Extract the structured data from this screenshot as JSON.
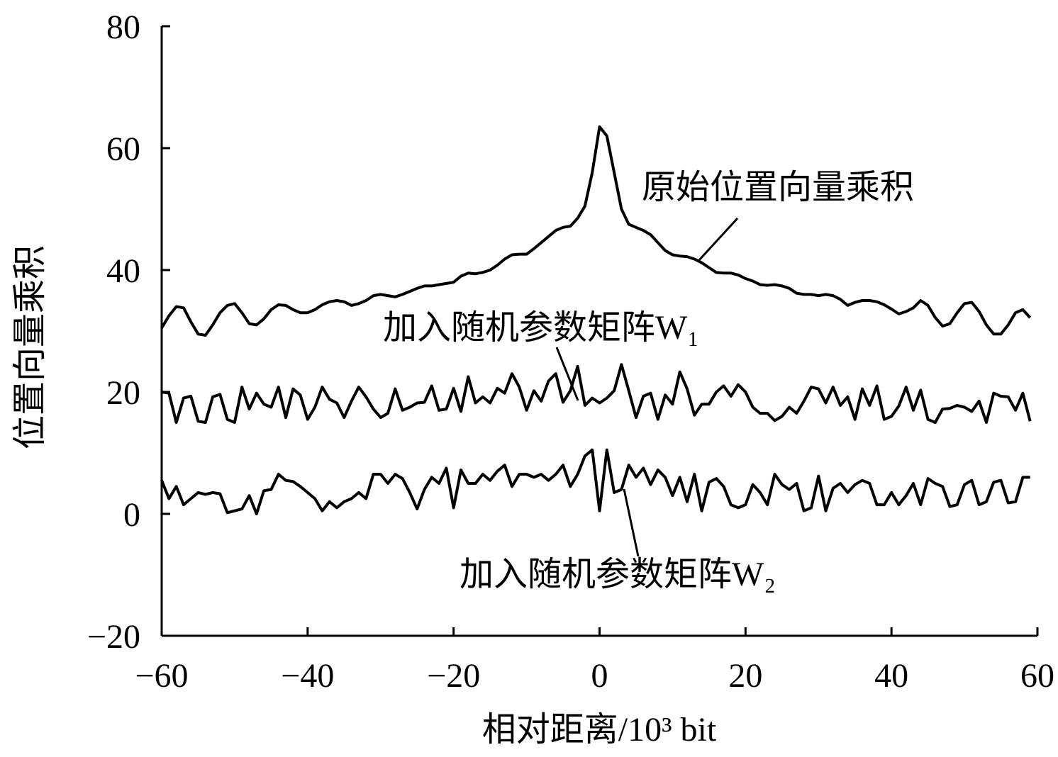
{
  "chart_data": {
    "type": "line",
    "xlabel": "相对距离/10³ bit",
    "ylabel": "位置向量乘积",
    "xlim": [
      -60,
      60
    ],
    "ylim": [
      -20,
      80
    ],
    "xticks": [
      {
        "value": -60,
        "label": "−60"
      },
      {
        "value": -40,
        "label": "−40"
      },
      {
        "value": -20,
        "label": "−20"
      },
      0,
      20,
      40,
      60
    ],
    "yticks": [
      {
        "value": -20,
        "label": "−20"
      },
      0,
      20,
      40,
      60,
      80
    ],
    "grid": false,
    "x": [
      -60,
      -59,
      -58,
      -57,
      -56,
      -55,
      -54,
      -53,
      -52,
      -51,
      -50,
      -49,
      -48,
      -47,
      -46,
      -45,
      -44,
      -43,
      -42,
      -41,
      -40,
      -39,
      -38,
      -37,
      -36,
      -35,
      -34,
      -33,
      -32,
      -31,
      -30,
      -29,
      -28,
      -27,
      -26,
      -25,
      -24,
      -23,
      -22,
      -21,
      -20,
      -19,
      -18,
      -17,
      -16,
      -15,
      -14,
      -13,
      -12,
      -11,
      -10,
      -9,
      -8,
      -7,
      -6,
      -5,
      -4,
      -3,
      -2,
      -1,
      0,
      1,
      2,
      3,
      4,
      5,
      6,
      7,
      8,
      9,
      10,
      11,
      12,
      13,
      14,
      15,
      16,
      17,
      18,
      19,
      20,
      21,
      22,
      23,
      24,
      25,
      26,
      27,
      28,
      29,
      30,
      31,
      32,
      33,
      34,
      35,
      36,
      37,
      38,
      39,
      40,
      41,
      42,
      43,
      44,
      45,
      46,
      47,
      48,
      49,
      50,
      51,
      52,
      53,
      54,
      55,
      56,
      57,
      58,
      59
    ],
    "series": [
      {
        "name": "原始位置向量乘积",
        "color": "#000000",
        "values": [
          30.5,
          32.5,
          34,
          33.8,
          31.5,
          29.5,
          29.3,
          31,
          33,
          34.2,
          34.5,
          33,
          31.2,
          31,
          32,
          33.5,
          34.3,
          34.2,
          33.5,
          33,
          33,
          33.5,
          34.3,
          34.8,
          35,
          34.8,
          34.2,
          34.5,
          35,
          35.8,
          36,
          35.8,
          35.6,
          36,
          36.5,
          37,
          37.4,
          37.4,
          37.6,
          37.8,
          38,
          39,
          39.5,
          39.4,
          39.6,
          40,
          40.8,
          41.8,
          42.5,
          42.6,
          42.6,
          43.5,
          44.5,
          45.5,
          46.5,
          47,
          47.2,
          48.5,
          50.5,
          56,
          63.5,
          62,
          56,
          50,
          47.5,
          47,
          46.5,
          45.8,
          44.5,
          43.2,
          42.5,
          42.3,
          42.2,
          41.8,
          41.2,
          40.4,
          39.6,
          39.5,
          39.5,
          39.2,
          38.6,
          38.2,
          37.6,
          37.5,
          37.6,
          37.4,
          37,
          36.2,
          36,
          36,
          35.8,
          36,
          35.8,
          35.2,
          34.2,
          34.7,
          35,
          35,
          34.8,
          34.3,
          33.6,
          32.8,
          33.2,
          33.8,
          35,
          34.2,
          32.2,
          30.8,
          31.2,
          33,
          34.5,
          34.7,
          33.2,
          31,
          29.5,
          29.5,
          31,
          33,
          33.5,
          32.2
        ]
      },
      {
        "name": "加入随机参数矩阵W₁",
        "color": "#000000",
        "values": [
          20,
          19.8,
          15,
          19,
          19.3,
          15.2,
          15,
          19.2,
          19.6,
          15.5,
          15,
          20.8,
          17.2,
          19.8,
          18,
          17.5,
          20.8,
          15.8,
          20.5,
          19.5,
          15.5,
          17.5,
          20.8,
          18.8,
          18.2,
          15.8,
          18.5,
          20.8,
          19.2,
          17.2,
          15.8,
          16.5,
          20.5,
          17,
          17.5,
          18.2,
          18.3,
          21,
          17,
          17.2,
          20.6,
          16.8,
          22.5,
          18.2,
          19.2,
          18.2,
          20.6,
          19.8,
          23,
          20.8,
          17,
          20.2,
          18.5,
          21.8,
          23,
          18.3,
          20.2,
          24.2,
          17.8,
          19,
          18.2,
          19,
          20.2,
          24.5,
          20.2,
          15.8,
          19.3,
          19.8,
          15.5,
          19.5,
          18,
          23.3,
          20.5,
          16.2,
          18,
          18,
          20,
          21,
          19.3,
          21.2,
          20,
          17.5,
          16.5,
          16.5,
          15.3,
          16,
          17.5,
          16.5,
          18.5,
          20.8,
          20.5,
          18.2,
          20.8,
          17.8,
          19.2,
          15.5,
          20.5,
          17.8,
          21,
          15.5,
          16,
          17.7,
          20.8,
          17,
          20.3,
          15.5,
          15,
          17.2,
          17.3,
          17.8,
          17.5,
          16.8,
          18.5,
          15,
          19.8,
          19.3,
          19.2,
          17,
          19.8,
          15.2
        ]
      },
      {
        "name": "加入随机参数矩阵W₂",
        "color": "#000000",
        "values": [
          5.5,
          2.5,
          4.5,
          1.5,
          2.5,
          3.5,
          3.2,
          3.5,
          3.3,
          0.2,
          0.5,
          0.8,
          3,
          0,
          3.8,
          4,
          6.5,
          5.5,
          5.3,
          4.5,
          3.5,
          2.5,
          0.5,
          2,
          1,
          2,
          2.5,
          3.5,
          2.5,
          6.5,
          6.5,
          5,
          6.5,
          5.8,
          3.5,
          0.8,
          4,
          6,
          5,
          7.5,
          1,
          7.2,
          5,
          5,
          6.5,
          5.5,
          7,
          8,
          4.5,
          6.5,
          6.5,
          6,
          6.5,
          5.5,
          6.5,
          8,
          4.5,
          6.5,
          9.5,
          10.5,
          0.5,
          10.5,
          3.5,
          4,
          8,
          6,
          7.5,
          4.8,
          7.2,
          6,
          3,
          6,
          2,
          6.5,
          0.5,
          5.2,
          5.8,
          4.5,
          1.5,
          1,
          1.5,
          4.8,
          3.5,
          1.5,
          6.5,
          4.8,
          4,
          5,
          0.5,
          1,
          6.2,
          0.5,
          4.2,
          5,
          3.5,
          4.8,
          5.5,
          5,
          1.5,
          1.5,
          3.5,
          1.5,
          3,
          5,
          1.5,
          5.8,
          5,
          4.5,
          1.2,
          1.5,
          4.8,
          5.5,
          1.5,
          2,
          5.2,
          5.5,
          1.8,
          2,
          6,
          6
        ]
      }
    ]
  }
}
